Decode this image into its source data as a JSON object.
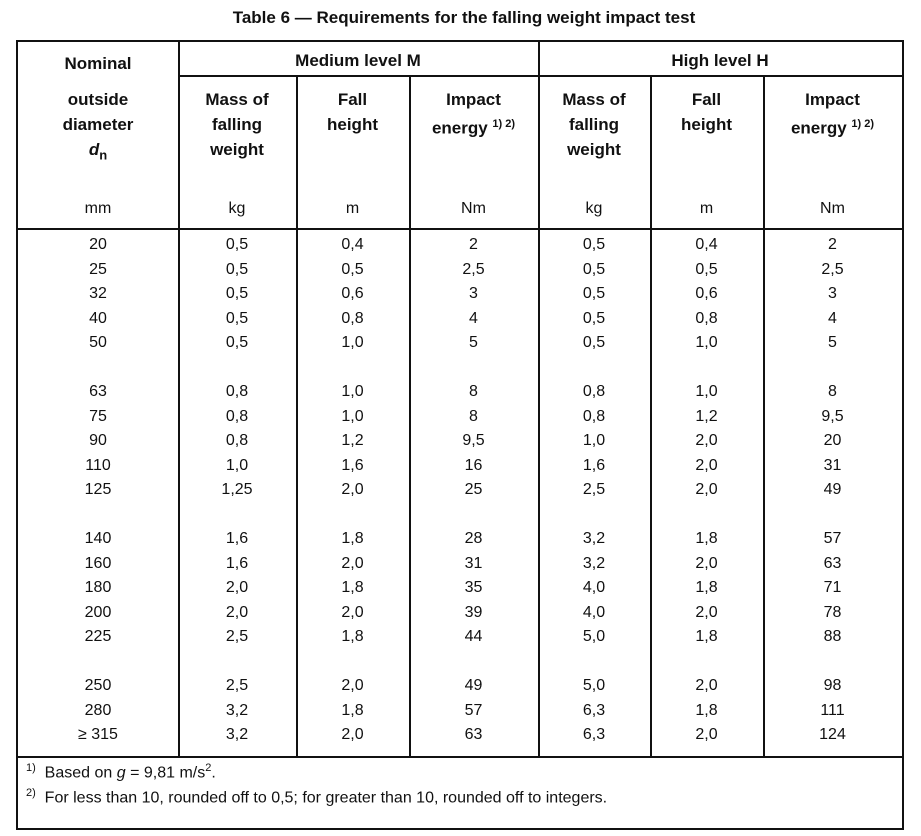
{
  "title": "Table 6 — Requirements for the falling weight impact test",
  "header": {
    "col1_line1": "Nominal",
    "col1_line2": "outside",
    "col1_line3": "diameter",
    "col1_symbol": "d",
    "col1_sub": "n",
    "group_medium": "Medium level M",
    "group_high": "High level H",
    "mass_l1": "Mass of",
    "mass_l2": "falling",
    "mass_l3": "weight",
    "fall_l1": "Fall",
    "fall_l2": "height",
    "impact_l1": "Impact",
    "impact_l2": "energy",
    "impact_sup": "1) 2)"
  },
  "units": [
    "mm",
    "kg",
    "m",
    "Nm",
    "kg",
    "m",
    "Nm"
  ],
  "rows": [
    [
      "20",
      "0,5",
      "0,4",
      "2",
      "0,5",
      "0,4",
      "2"
    ],
    [
      "25",
      "0,5",
      "0,5",
      "2,5",
      "0,5",
      "0,5",
      "2,5"
    ],
    [
      "32",
      "0,5",
      "0,6",
      "3",
      "0,5",
      "0,6",
      "3"
    ],
    [
      "40",
      "0,5",
      "0,8",
      "4",
      "0,5",
      "0,8",
      "4"
    ],
    [
      "50",
      "0,5",
      "1,0",
      "5",
      "0,5",
      "1,0",
      "5"
    ],
    [
      "63",
      "0,8",
      "1,0",
      "8",
      "0,8",
      "1,0",
      "8"
    ],
    [
      "75",
      "0,8",
      "1,0",
      "8",
      "0,8",
      "1,2",
      "9,5"
    ],
    [
      "90",
      "0,8",
      "1,2",
      "9,5",
      "1,0",
      "2,0",
      "20"
    ],
    [
      "110",
      "1,0",
      "1,6",
      "16",
      "1,6",
      "2,0",
      "31"
    ],
    [
      "125",
      "1,25",
      "2,0",
      "25",
      "2,5",
      "2,0",
      "49"
    ],
    [
      "140",
      "1,6",
      "1,8",
      "28",
      "3,2",
      "1,8",
      "57"
    ],
    [
      "160",
      "1,6",
      "2,0",
      "31",
      "3,2",
      "2,0",
      "63"
    ],
    [
      "180",
      "2,0",
      "1,8",
      "35",
      "4,0",
      "1,8",
      "71"
    ],
    [
      "200",
      "2,0",
      "2,0",
      "39",
      "4,0",
      "2,0",
      "78"
    ],
    [
      "225",
      "2,5",
      "1,8",
      "44",
      "5,0",
      "1,8",
      "88"
    ],
    [
      "250",
      "2,5",
      "2,0",
      "49",
      "5,0",
      "2,0",
      "98"
    ],
    [
      "280",
      "3,2",
      "1,8",
      "57",
      "6,3",
      "1,8",
      "111"
    ],
    [
      "≥ 315",
      "3,2",
      "2,0",
      "63",
      "6,3",
      "2,0",
      "124"
    ]
  ],
  "footnotes": {
    "f1_mark": "1)",
    "f1_pre": "Based on",
    "f1_g": "g",
    "f1_post": "= 9,81 m/s",
    "f1_exp": "2",
    "f1_end": ".",
    "f2_mark": "2)",
    "f2_text": "For less than 10, rounded off to 0,5; for greater than 10, rounded off to integers."
  }
}
